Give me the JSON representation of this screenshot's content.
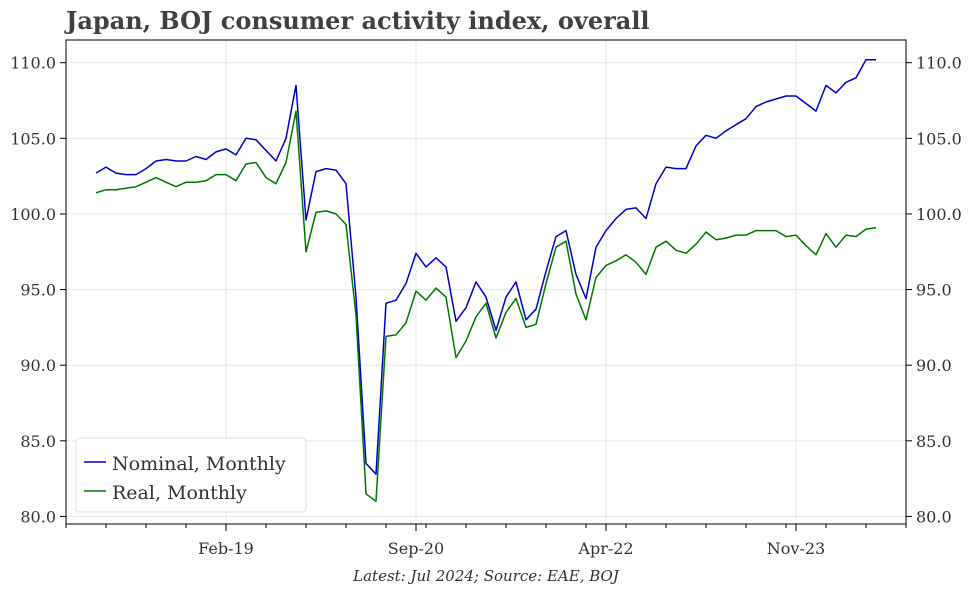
{
  "title": "Japan, BOJ consumer activity index, overall",
  "source": "Latest: Jul 2024; Source: EAE, BOJ",
  "chart_data": {
    "type": "line",
    "x_start": "2018-01",
    "x_end": "2024-07",
    "x_frequency": "monthly",
    "xticks": [
      {
        "date": "2019-02",
        "label": "Feb-19"
      },
      {
        "date": "2020-09",
        "label": "Sep-20"
      },
      {
        "date": "2022-04",
        "label": "Apr-22"
      },
      {
        "date": "2023-11",
        "label": "Nov-23"
      }
    ],
    "xlim": [
      "2017-10",
      "2024-10"
    ],
    "ylim": [
      79.5,
      111.5
    ],
    "yticks": [
      80.0,
      85.0,
      90.0,
      95.0,
      100.0,
      105.0,
      110.0
    ],
    "ytick_labels": [
      "80.0",
      "85.0",
      "90.0",
      "95.0",
      "100.0",
      "105.0",
      "110.0"
    ],
    "y_axis_both_sides": true,
    "grid": true,
    "legend_position": "lower-left",
    "series": [
      {
        "name": "Nominal, Monthly",
        "color": "#0000cc",
        "values": [
          102.7,
          103.1,
          102.7,
          102.6,
          102.6,
          103.0,
          103.5,
          103.6,
          103.5,
          103.5,
          103.8,
          103.6,
          104.1,
          104.3,
          103.9,
          105.0,
          104.9,
          104.2,
          103.5,
          105.0,
          108.5,
          99.6,
          102.8,
          103.0,
          102.9,
          102.0,
          94.5,
          83.5,
          82.8,
          94.1,
          94.3,
          95.4,
          97.4,
          96.5,
          97.1,
          96.5,
          92.9,
          93.8,
          95.5,
          94.5,
          92.3,
          94.5,
          95.5,
          93.0,
          93.7,
          96.2,
          98.5,
          98.9,
          96.0,
          94.4,
          97.8,
          98.9,
          99.7,
          100.3,
          100.4,
          99.7,
          102.0,
          103.1,
          103.0,
          103.0,
          104.5,
          105.2,
          105.0,
          105.5,
          105.9,
          106.3,
          107.1,
          107.4,
          107.6,
          107.8,
          107.8,
          107.3,
          106.8,
          108.5,
          108.0,
          108.7,
          109.0,
          110.2,
          110.2
        ]
      },
      {
        "name": "Real, Monthly",
        "color": "#007700",
        "values": [
          101.4,
          101.6,
          101.6,
          101.7,
          101.8,
          102.1,
          102.4,
          102.1,
          101.8,
          102.1,
          102.1,
          102.2,
          102.6,
          102.6,
          102.2,
          103.3,
          103.4,
          102.4,
          102.0,
          103.4,
          106.8,
          97.5,
          100.1,
          100.2,
          100.0,
          99.3,
          93.3,
          81.5,
          81.0,
          91.9,
          92.0,
          92.8,
          94.9,
          94.3,
          95.1,
          94.5,
          90.5,
          91.6,
          93.2,
          94.1,
          91.8,
          93.5,
          94.4,
          92.5,
          92.7,
          95.4,
          97.8,
          98.2,
          94.7,
          93.0,
          95.8,
          96.6,
          96.9,
          97.3,
          96.8,
          96.0,
          97.8,
          98.2,
          97.6,
          97.4,
          98.0,
          98.8,
          98.3,
          98.4,
          98.6,
          98.6,
          98.9,
          98.9,
          98.9,
          98.5,
          98.6,
          97.9,
          97.3,
          98.7,
          97.8,
          98.6,
          98.5,
          99.0,
          99.1
        ]
      }
    ]
  }
}
